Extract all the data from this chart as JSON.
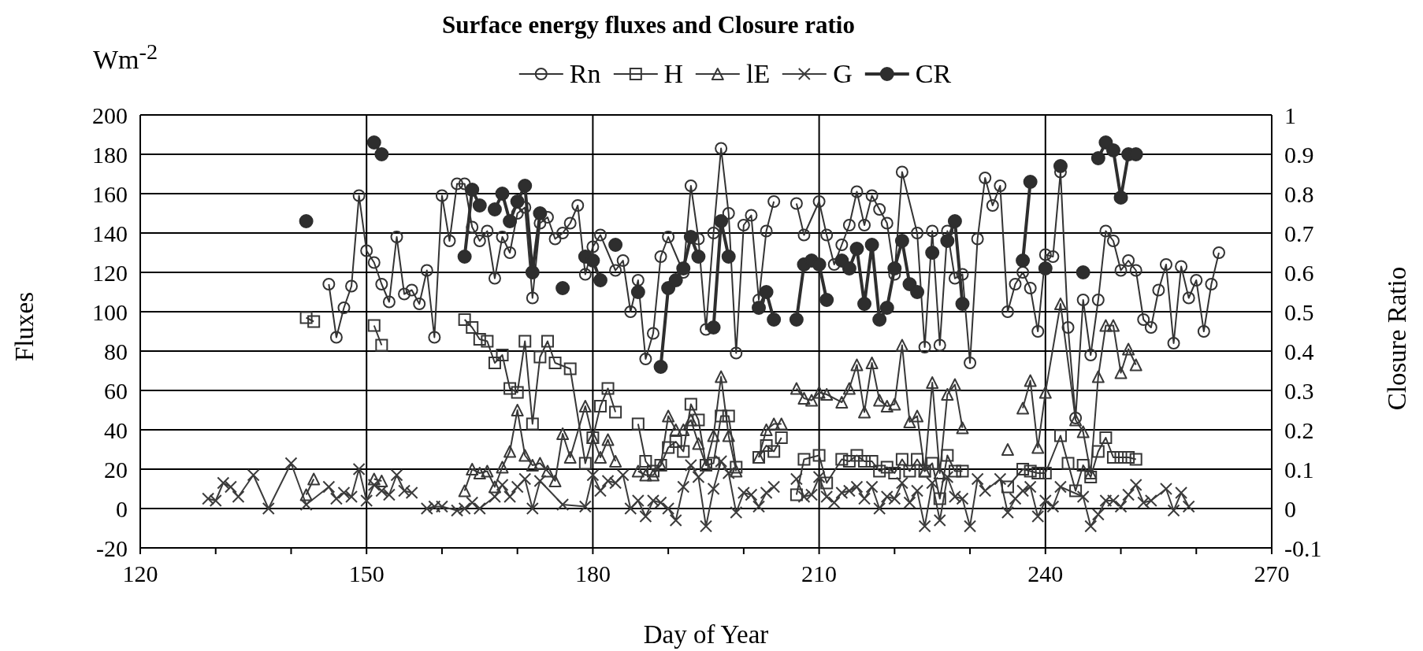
{
  "chart_data": {
    "type": "line",
    "title": "Surface energy fluxes and Closure ratio",
    "xlabel": "Day of Year",
    "ylabel": "Fluxes",
    "y2label": "Closure Ratio",
    "annotations": [
      "Wm$^{-2}$"
    ],
    "xlim": [
      120,
      270
    ],
    "xticks": [
      120,
      {
        "value": 130,
        "label": null
      },
      {
        "value": 140,
        "label": null
      },
      150,
      {
        "value": 160,
        "label": null
      },
      {
        "value": 170,
        "label": null
      },
      180,
      {
        "value": 190,
        "label": null
      },
      {
        "value": 200,
        "label": null
      },
      210,
      {
        "value": 220,
        "label": null
      },
      {
        "value": 230,
        "label": null
      },
      240,
      {
        "value": 250,
        "label": null
      },
      {
        "value": 260,
        "label": null
      },
      270
    ],
    "ylim": [
      -20,
      200
    ],
    "yticks": [
      -20,
      0,
      20,
      40,
      60,
      80,
      100,
      120,
      140,
      160,
      180,
      200
    ],
    "y2lim": [
      -0.1,
      1
    ],
    "y2ticks": [
      -0.1,
      0,
      0.1,
      0.2,
      0.3,
      0.4,
      0.5,
      0.6,
      0.7,
      0.8,
      0.9,
      1
    ],
    "grid": true,
    "legend": "top",
    "line_style": "solid",
    "series": [
      {
        "name": "Rn",
        "color": "#333333",
        "marker": "circle",
        "x": [
          145,
          146,
          147,
          148,
          149,
          150,
          151,
          152,
          153,
          154,
          155,
          156,
          157,
          158,
          159,
          160,
          161,
          162,
          163,
          164,
          165,
          166,
          167,
          168,
          169,
          170,
          171,
          172,
          173,
          174,
          175,
          176,
          177,
          178,
          179,
          180,
          181,
          183,
          184,
          185,
          186,
          187,
          188,
          189,
          190,
          192,
          193,
          194,
          195,
          196,
          197,
          198,
          199,
          200,
          201,
          202,
          203,
          204,
          205,
          207,
          208,
          210,
          211,
          212,
          213,
          214,
          215,
          216,
          217,
          218,
          219,
          220,
          221,
          223,
          224,
          225,
          226,
          227,
          228,
          229,
          230,
          231,
          232,
          233,
          234,
          235,
          236,
          237,
          238,
          239,
          240,
          241,
          242,
          243,
          244,
          245,
          246,
          247,
          248,
          249,
          250,
          251,
          252,
          253,
          254,
          255,
          256,
          257,
          258,
          259,
          260,
          261,
          262,
          263
        ],
        "values": [
          114,
          87,
          102,
          113,
          159,
          131,
          125,
          114,
          105,
          138,
          109,
          111,
          104,
          121,
          87,
          159,
          136,
          165,
          165,
          143,
          136,
          141,
          117,
          138,
          130,
          150,
          153,
          107,
          145,
          148,
          137,
          140,
          145,
          154,
          119,
          133,
          139,
          121,
          126,
          100,
          116,
          76,
          89,
          128,
          138,
          120,
          164,
          137,
          91,
          140,
          183,
          150,
          79,
          144,
          149,
          106,
          141,
          156,
          null,
          155,
          139,
          156,
          139,
          124,
          134,
          144,
          161,
          144,
          159,
          152,
          145,
          119,
          171,
          140,
          82,
          141,
          83,
          141,
          117,
          119,
          74,
          137,
          168,
          154,
          164,
          100,
          114,
          120,
          112,
          90,
          129,
          128,
          171,
          92,
          46,
          106,
          78,
          106,
          141,
          136,
          121,
          126,
          121,
          96,
          92,
          111,
          124,
          84,
          123,
          107,
          116,
          90,
          114,
          130
        ]
      },
      {
        "name": "H",
        "color": "#363636",
        "marker": "square",
        "x": [
          142,
          143,
          144,
          151,
          152,
          153,
          163,
          164,
          165,
          166,
          167,
          168,
          169,
          170,
          171,
          172,
          173,
          174,
          175,
          177,
          179,
          180,
          181,
          182,
          183,
          184,
          186,
          187,
          188,
          189,
          190,
          191,
          192,
          193,
          194,
          195,
          196,
          197,
          198,
          199,
          200,
          202,
          203,
          204,
          205,
          206,
          207,
          208,
          210,
          211,
          213,
          214,
          215,
          216,
          217,
          218,
          219,
          220,
          221,
          222,
          223,
          224,
          225,
          226,
          227,
          228,
          229,
          230,
          235,
          237,
          238,
          239,
          240,
          242,
          243,
          244,
          245,
          246,
          247,
          248,
          249,
          250,
          251,
          252
        ],
        "values": [
          97,
          95,
          null,
          93,
          83,
          null,
          96,
          92,
          86,
          85,
          74,
          78,
          61,
          59,
          85,
          43,
          77,
          85,
          74,
          71,
          23,
          36,
          52,
          61,
          49,
          null,
          43,
          24,
          19,
          22,
          31,
          34,
          29,
          53,
          45,
          22,
          23,
          47,
          47,
          21,
          null,
          26,
          32,
          29,
          36,
          null,
          7,
          25,
          27,
          13,
          25,
          24,
          27,
          24,
          24,
          19,
          21,
          18,
          25,
          19,
          25,
          19,
          23,
          5,
          27,
          19,
          19,
          null,
          11,
          20,
          19,
          18,
          18,
          37,
          23,
          9,
          22,
          16,
          29,
          36,
          26,
          26,
          26,
          25
        ]
      },
      {
        "name": "lE",
        "color": "#393939",
        "marker": "triangle",
        "x": [
          142,
          143,
          144,
          151,
          152,
          153,
          163,
          164,
          165,
          166,
          167,
          168,
          169,
          170,
          171,
          172,
          173,
          174,
          175,
          176,
          177,
          179,
          180,
          181,
          182,
          183,
          184,
          186,
          187,
          188,
          189,
          190,
          191,
          192,
          193,
          194,
          195,
          196,
          197,
          198,
          199,
          200,
          202,
          203,
          204,
          205,
          206,
          207,
          208,
          209,
          210,
          211,
          213,
          214,
          215,
          216,
          217,
          218,
          219,
          220,
          221,
          222,
          223,
          224,
          225,
          226,
          227,
          228,
          229,
          230,
          235,
          236,
          237,
          238,
          239,
          240,
          242,
          244,
          245,
          246,
          247,
          248,
          249,
          250,
          251,
          252
        ],
        "values": [
          7,
          15,
          null,
          15,
          14,
          null,
          9,
          20,
          18,
          19,
          11,
          21,
          29,
          50,
          27,
          22,
          23,
          19,
          14,
          38,
          26,
          52,
          36,
          26,
          35,
          24,
          null,
          19,
          17,
          17,
          22,
          47,
          40,
          40,
          45,
          33,
          22,
          37,
          67,
          37,
          19,
          null,
          26,
          40,
          43,
          43,
          null,
          61,
          56,
          55,
          59,
          58,
          54,
          61,
          73,
          49,
          74,
          55,
          52,
          53,
          83,
          44,
          47,
          19,
          64,
          18,
          58,
          63,
          41,
          null,
          30,
          null,
          51,
          65,
          31,
          59,
          104,
          45,
          39,
          18,
          67,
          93,
          93,
          69,
          81,
          73
        ]
      },
      {
        "name": "G",
        "color": "#3c3c3c",
        "marker": "cross",
        "x": [
          129,
          130,
          131,
          132,
          133,
          135,
          137,
          140,
          142,
          145,
          146,
          147,
          148,
          149,
          150,
          151,
          152,
          153,
          154,
          155,
          156,
          157,
          158,
          159,
          160,
          162,
          163,
          164,
          165,
          167,
          168,
          169,
          170,
          171,
          172,
          173,
          176,
          179,
          180,
          181,
          182,
          183,
          184,
          185,
          186,
          187,
          188,
          189,
          190,
          191,
          192,
          193,
          194,
          195,
          196,
          197,
          198,
          199,
          200,
          201,
          202,
          203,
          204,
          205,
          207,
          208,
          209,
          210,
          211,
          212,
          213,
          214,
          215,
          216,
          217,
          218,
          219,
          220,
          221,
          222,
          223,
          224,
          225,
          226,
          227,
          228,
          229,
          230,
          231,
          232,
          234,
          235,
          236,
          237,
          238,
          239,
          240,
          241,
          242,
          245,
          246,
          247,
          248,
          249,
          250,
          251,
          252,
          253,
          254,
          256,
          257,
          258,
          259
        ],
        "values": [
          5,
          4,
          13,
          11,
          6,
          17,
          0,
          23,
          2,
          11,
          5,
          8,
          6,
          20,
          4,
          12,
          9,
          7,
          17,
          9,
          8,
          null,
          0,
          1,
          1,
          -1,
          0,
          3,
          0,
          6,
          12,
          6,
          11,
          15,
          0,
          14,
          2,
          1,
          17,
          9,
          14,
          13,
          17,
          0,
          4,
          -4,
          4,
          3,
          0,
          -6,
          11,
          22,
          16,
          -9,
          10,
          24,
          18,
          -2,
          8,
          7,
          1,
          8,
          11,
          null,
          15,
          6,
          7,
          16,
          6,
          3,
          8,
          9,
          11,
          5,
          11,
          0,
          6,
          5,
          13,
          3,
          9,
          -9,
          13,
          -6,
          16,
          6,
          5,
          -9,
          15,
          9,
          15,
          -2,
          5,
          9,
          11,
          -4,
          4,
          1,
          11,
          6,
          -9,
          -3,
          4,
          4,
          1,
          7,
          12,
          3,
          4,
          10,
          -1,
          8,
          1
        ]
      },
      {
        "name": "CR",
        "color": "#2e2e2e",
        "marker": "circle",
        "axis": "y2",
        "x": [
          142,
          143,
          151,
          152,
          153,
          163,
          164,
          165,
          166,
          167,
          168,
          169,
          170,
          171,
          172,
          173,
          174,
          176,
          177,
          179,
          180,
          181,
          182,
          183,
          184,
          186,
          187,
          189,
          190,
          191,
          192,
          193,
          194,
          195,
          196,
          197,
          198,
          199,
          202,
          203,
          204,
          205,
          207,
          208,
          209,
          210,
          211,
          212,
          213,
          214,
          215,
          216,
          217,
          218,
          219,
          220,
          221,
          222,
          223,
          224,
          225,
          226,
          227,
          228,
          229,
          230,
          237,
          238,
          239,
          240,
          241,
          242,
          243,
          245,
          246,
          247,
          248,
          249,
          250,
          251,
          252
        ],
        "values": [
          0.73,
          null,
          0.93,
          0.9,
          null,
          0.64,
          0.81,
          0.77,
          null,
          0.76,
          0.8,
          0.73,
          0.78,
          0.82,
          0.6,
          0.75,
          null,
          0.56,
          null,
          0.64,
          0.63,
          0.58,
          null,
          0.67,
          null,
          0.55,
          null,
          0.36,
          0.56,
          0.58,
          0.61,
          0.69,
          0.64,
          null,
          0.46,
          0.73,
          0.64,
          null,
          0.51,
          0.55,
          0.48,
          null,
          0.48,
          0.62,
          0.63,
          0.62,
          0.53,
          null,
          0.63,
          0.61,
          0.66,
          0.52,
          0.67,
          0.48,
          0.51,
          0.61,
          0.68,
          0.57,
          0.55,
          null,
          0.65,
          null,
          0.68,
          0.73,
          0.52,
          null,
          0.63,
          0.83,
          null,
          0.61,
          null,
          0.87,
          null,
          0.6,
          null,
          0.89,
          0.93,
          0.91,
          0.79,
          0.9,
          0.9
        ]
      }
    ]
  }
}
